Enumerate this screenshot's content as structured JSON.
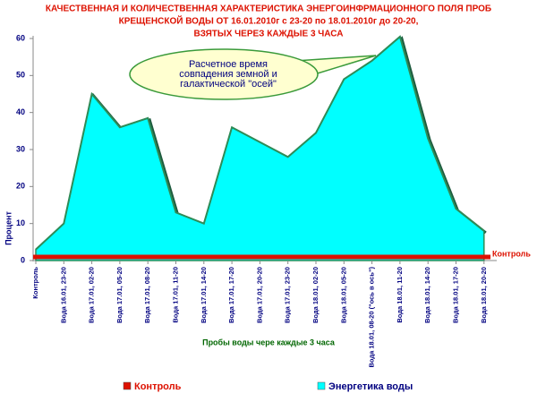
{
  "chart_data": {
    "type": "area",
    "title": [
      "КАЧЕСТВЕННАЯ И КОЛИЧЕСТВЕННАЯ ХАРАКТЕРИСТИКА ЭНЕРГОИНФРМАЦИОННОГО ПОЛЯ ПРОБ",
      "КРЕЩЕНСКОЙ ВОДЫ ОТ 16.01.2010г с 23-20 по 18.01.2010г до 20-20,",
      "ВЗЯТЫХ ЧЕРЕЗ КАЖДЫЕ 3 ЧАСА"
    ],
    "annotation": [
      "Расчетное время",
      "совпадения земной и",
      "галактической \"осей\""
    ],
    "x_label": "Пробы воды чере каждые 3 часа",
    "y_label": "Процент",
    "categories": [
      "Контроль",
      "Вода 16.01, 23-20",
      "Вода 17.01, 02-20",
      "Вода 17.01, 05-20",
      "Вода 17.01, 08-20",
      "Вода 17.01, 11-20",
      "Вода 17.01, 14-20",
      "Вода 17.01, 17-20",
      "Вода 17.01, 20-20",
      "Вода 17.01, 23-20",
      "Вода 18.01, 02-20",
      "Вода 18.01, 05-20",
      "Вода 18.01, 08-20 (\"ось в ось\")",
      "Вода 18.01, 11-20",
      "Вода 18.01, 14-20",
      "Вода 18.01, 17-20",
      "Вода 18.01, 20-20"
    ],
    "series": [
      {
        "name": "Контроль",
        "color": "#dd1100",
        "values": [
          0,
          0,
          0,
          0,
          0,
          0,
          0,
          0,
          0,
          0,
          0,
          0,
          0,
          0,
          0,
          0,
          0
        ]
      },
      {
        "name": "Энергетика воды",
        "color": "#00ffff",
        "values": [
          3,
          10,
          45,
          36,
          38.5,
          13,
          10,
          36,
          32,
          28,
          34.5,
          49,
          54,
          60.5,
          33,
          14,
          8
        ]
      }
    ],
    "ylim": [
      0,
      60
    ],
    "yticks": [
      0,
      10,
      20,
      30,
      40,
      50,
      60
    ],
    "grid": false
  }
}
